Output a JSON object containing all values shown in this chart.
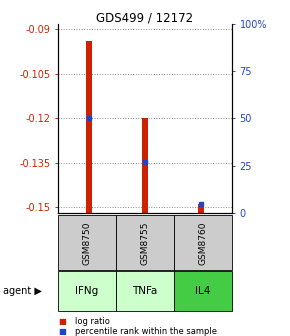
{
  "title": "GDS499 / 12172",
  "samples": [
    "GSM8750",
    "GSM8755",
    "GSM8760"
  ],
  "agents": [
    "IFNg",
    "TNFa",
    "IL4"
  ],
  "log_ratios": [
    -0.094,
    -0.12,
    -0.149
  ],
  "percentiles": [
    50,
    27,
    5
  ],
  "ylim_left": [
    -0.152,
    -0.088
  ],
  "ylim_right": [
    0,
    100
  ],
  "yticks_left": [
    -0.15,
    -0.135,
    -0.12,
    -0.105,
    -0.09
  ],
  "yticks_right": [
    0,
    25,
    50,
    75,
    100
  ],
  "ytick_labels_left": [
    "-0.15",
    "-0.135",
    "-0.12",
    "-0.105",
    "-0.09"
  ],
  "ytick_labels_right": [
    "0",
    "25",
    "50",
    "75",
    "100%"
  ],
  "bar_color": "#cc2200",
  "dot_color": "#2244cc",
  "sample_box_color": "#cccccc",
  "agent_colors": [
    "#ccffcc",
    "#ccffcc",
    "#44cc44"
  ],
  "grid_color": "#888888",
  "title_color": "#000000",
  "left_axis_color": "#cc2200",
  "right_axis_color": "#2244cc",
  "bar_width": 0.12
}
